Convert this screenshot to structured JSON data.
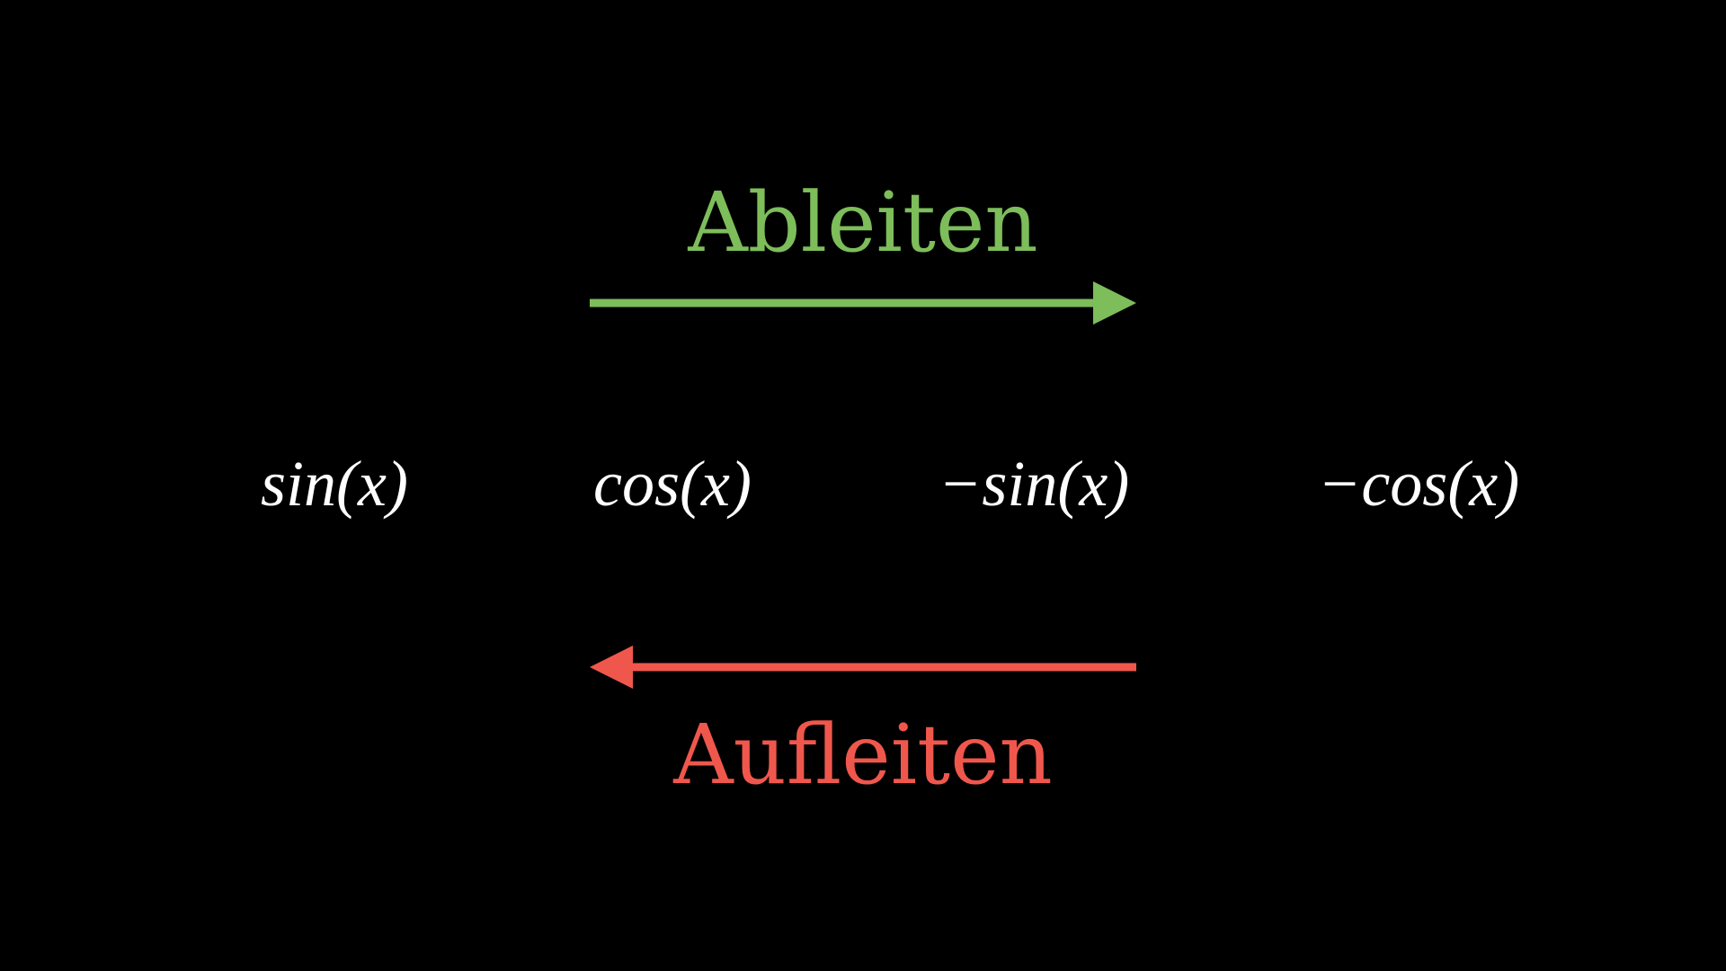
{
  "colors": {
    "background": "#000000",
    "derive": "#7dbd5a",
    "integrate": "#f0574c",
    "text": "#ffffff"
  },
  "derive": {
    "label": "Ableiten",
    "direction": "right"
  },
  "integrate": {
    "label": "Aufleiten",
    "direction": "left"
  },
  "functions": [
    "sin(x)",
    "cos(x)",
    "−sin(x)",
    "−cos(x)"
  ]
}
